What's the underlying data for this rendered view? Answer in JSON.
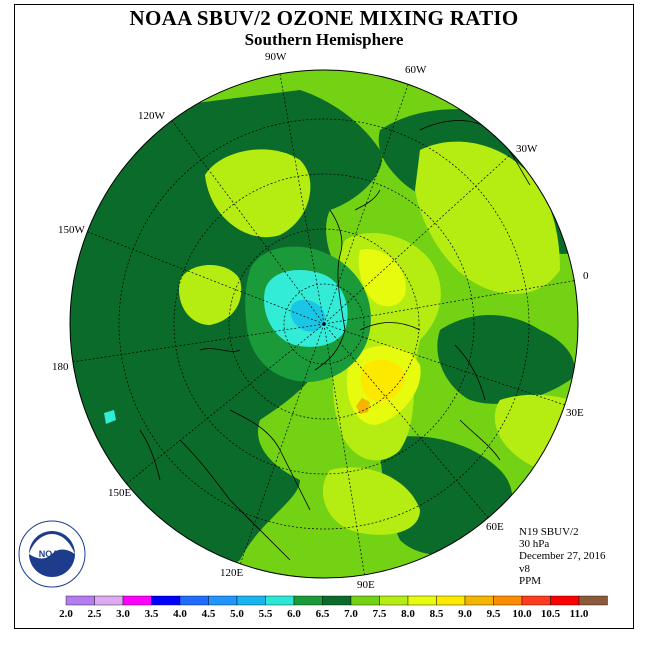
{
  "header": {
    "title": "NOAA SBUV/2 OZONE MIXING RATIO",
    "subtitle": "Southern Hemisphere"
  },
  "map": {
    "projection": "polar stereographic, south pole",
    "longitude_labels": [
      "90W",
      "60W",
      "30W",
      "0",
      "30E",
      "60E",
      "90E",
      "120E",
      "150E",
      "180",
      "150W",
      "120W"
    ],
    "field_colors": {
      "6.0-6.5": "#1b9a3a",
      "6.5-7.0": "#0b6b2b",
      "7.0-7.5": "#74d215",
      "7.5-8.0": "#b5ed12",
      "8.0-8.5": "#e6fb0e",
      "8.5-9.0": "#fde800",
      "9.0-9.5": "#f4b400",
      "5.5-6.0": "#33ecd7",
      "5.0-5.5": "#1ac6e6"
    }
  },
  "info": {
    "satellite": "N19 SBUV/2",
    "level": "30 hPa",
    "date": "December 27, 2016",
    "version": "v8",
    "units": "PPM"
  },
  "logo": {
    "text": "NOAA",
    "ring_text": "NATIONAL OCEANIC AND ATMOSPHERIC ADMINISTRATION · U.S. DEPARTMENT OF COMMERCE"
  },
  "colorbar": {
    "labels": [
      "2.0",
      "2.5",
      "3.0",
      "3.5",
      "4.0",
      "4.5",
      "5.0",
      "5.5",
      "6.0",
      "6.5",
      "7.0",
      "7.5",
      "8.0",
      "8.5",
      "9.0",
      "9.5",
      "10.0",
      "10.5",
      "11.0"
    ],
    "colors": [
      "#b57cf0",
      "#dcaaf2",
      "#ff00ff",
      "#0000ff",
      "#1f6cff",
      "#2196ff",
      "#18b4f0",
      "#2ee6d6",
      "#1b9a3a",
      "#0b6b2b",
      "#74d215",
      "#b5ed12",
      "#e6fb0e",
      "#fde800",
      "#f4b400",
      "#ff8c00",
      "#ff3c1e",
      "#ff0000",
      "#8b5a3c"
    ]
  }
}
